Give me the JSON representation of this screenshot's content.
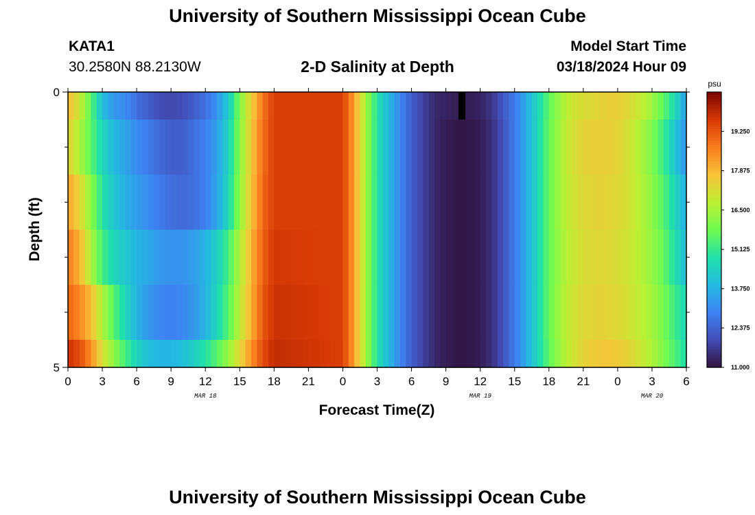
{
  "header": {
    "title": "University of Southern Mississippi Ocean Cube",
    "station_id": "KATA1",
    "station_coords": "30.2580N  88.2130W",
    "plot_title": "2-D Salinity at Depth",
    "model_start_label": "Model Start Time",
    "model_start_value": "03/18/2024 Hour 09"
  },
  "footer": {
    "title": "University of Southern Mississippi Ocean Cube"
  },
  "chart_data": {
    "type": "heatmap",
    "title": "2-D Salinity at Depth",
    "xlabel": "Forecast Time(Z)",
    "ylabel": "Depth (ft)",
    "x_tick_labels": [
      "0",
      "3",
      "6",
      "9",
      "12",
      "15",
      "18",
      "21",
      "0",
      "3",
      "6",
      "9",
      "12",
      "15",
      "18",
      "21",
      "0",
      "3",
      "6"
    ],
    "x_hours": [
      0,
      3,
      6,
      9,
      12,
      15,
      18,
      21,
      24,
      27,
      30,
      33,
      36,
      39,
      42,
      45,
      48,
      51,
      54
    ],
    "x_range_hours": [
      0,
      54
    ],
    "date_labels": [
      {
        "label": "MAR 18",
        "hour": 12
      },
      {
        "label": "MAR 19",
        "hour": 36
      },
      {
        "label": "MAR 20",
        "hour": 51
      }
    ],
    "y_tick_labels": [
      "0",
      "5"
    ],
    "y_range_ft": [
      0,
      5
    ],
    "depth_levels_ft": [
      0.25,
      1.5,
      2.5,
      3.5,
      4.5,
      5.0
    ],
    "depth_level_bounds_ft": [
      [
        0,
        0.5
      ],
      [
        0.5,
        1.5
      ],
      [
        1.5,
        2.5
      ],
      [
        2.5,
        3.5
      ],
      [
        3.5,
        4.5
      ],
      [
        4.5,
        5
      ]
    ],
    "colorbar": {
      "unit": "psu",
      "range": [
        11.0,
        20.625
      ],
      "tick_values": [
        11.0,
        12.375,
        13.75,
        15.125,
        16.5,
        17.875,
        19.25
      ],
      "tick_labels": [
        "11.000",
        "12.375",
        "13.750",
        "15.125",
        "16.500",
        "17.875",
        "19.250"
      ],
      "colormap": "turbo"
    },
    "time_keyframes_hours": [
      0,
      1,
      2,
      3,
      4,
      5,
      6,
      7,
      8,
      9,
      10,
      11,
      12,
      13,
      14,
      15,
      16,
      17,
      18,
      24,
      25,
      26,
      27,
      28,
      29,
      30,
      31,
      32,
      33,
      34,
      35,
      36,
      37,
      38,
      39,
      40,
      41,
      42,
      43,
      44,
      45,
      46,
      47,
      48,
      49,
      50,
      51,
      52,
      53,
      54
    ],
    "salinity_psu": [
      [
        17.9,
        17.0,
        15.6,
        14.0,
        13.3,
        13.1,
        12.6,
        12.3,
        12.0,
        11.9,
        12.0,
        12.3,
        12.6,
        13.2,
        14.3,
        16.0,
        17.5,
        18.8,
        19.6,
        19.6,
        18.2,
        16.5,
        14.9,
        13.9,
        13.0,
        12.3,
        11.8,
        11.4,
        11.3,
        11.2,
        11.2,
        11.3,
        11.6,
        12.2,
        12.8,
        13.6,
        14.6,
        15.6,
        16.4,
        17.0,
        17.2,
        17.3,
        17.5,
        17.5,
        17.3,
        16.9,
        16.4,
        15.6,
        14.7,
        13.3
      ],
      [
        17.5,
        16.6,
        15.6,
        14.6,
        13.9,
        13.5,
        13.1,
        12.8,
        12.5,
        12.3,
        12.3,
        12.6,
        12.9,
        13.4,
        14.5,
        16.1,
        17.6,
        18.9,
        19.6,
        19.6,
        18.2,
        16.5,
        14.9,
        13.9,
        13.0,
        12.3,
        11.8,
        11.4,
        11.2,
        11.1,
        11.1,
        11.2,
        11.5,
        12.1,
        12.8,
        13.6,
        14.6,
        15.7,
        16.5,
        17.1,
        17.4,
        17.5,
        17.5,
        17.4,
        17.1,
        16.6,
        16.0,
        15.2,
        14.2,
        13.2
      ],
      [
        18.2,
        17.4,
        16.2,
        14.9,
        14.2,
        13.7,
        13.4,
        13.1,
        12.8,
        12.6,
        12.5,
        12.6,
        12.9,
        13.5,
        14.6,
        16.2,
        17.7,
        19.0,
        19.6,
        19.6,
        18.2,
        16.5,
        14.9,
        13.9,
        13.0,
        12.3,
        11.8,
        11.4,
        11.2,
        11.1,
        11.1,
        11.2,
        11.5,
        12.1,
        12.8,
        13.6,
        14.6,
        15.7,
        16.5,
        17.0,
        17.3,
        17.4,
        17.4,
        17.3,
        17.1,
        16.7,
        16.2,
        15.5,
        14.6,
        13.6
      ],
      [
        18.7,
        18.0,
        16.6,
        15.3,
        14.6,
        14.2,
        13.8,
        13.6,
        13.3,
        13.2,
        13.2,
        13.4,
        13.8,
        14.4,
        15.3,
        16.6,
        17.9,
        19.1,
        19.7,
        19.6,
        18.2,
        16.5,
        14.9,
        13.9,
        13.0,
        12.3,
        11.8,
        11.4,
        11.2,
        11.1,
        11.1,
        11.2,
        11.5,
        12.1,
        12.8,
        13.6,
        14.6,
        15.7,
        16.4,
        16.9,
        17.2,
        17.3,
        17.3,
        17.2,
        17.0,
        16.7,
        16.3,
        15.7,
        14.8,
        14.0
      ],
      [
        19.0,
        18.6,
        17.8,
        16.6,
        15.5,
        14.6,
        13.8,
        13.3,
        13.0,
        12.9,
        13.0,
        13.3,
        13.8,
        14.6,
        15.5,
        16.8,
        18.0,
        19.2,
        19.8,
        19.6,
        18.2,
        16.5,
        14.9,
        13.9,
        13.0,
        12.3,
        11.8,
        11.4,
        11.2,
        11.1,
        11.1,
        11.2,
        11.5,
        12.1,
        12.8,
        13.6,
        14.6,
        15.7,
        16.5,
        17.0,
        17.3,
        17.4,
        17.4,
        17.3,
        17.1,
        16.8,
        16.5,
        15.9,
        15.2,
        14.6
      ],
      [
        19.8,
        19.4,
        18.5,
        17.2,
        16.2,
        15.3,
        14.5,
        14.0,
        13.8,
        13.8,
        14.0,
        14.4,
        14.9,
        15.5,
        16.3,
        17.3,
        18.4,
        19.4,
        19.9,
        19.6,
        18.2,
        16.5,
        14.9,
        13.9,
        13.0,
        12.3,
        11.8,
        11.4,
        11.2,
        11.1,
        11.1,
        11.2,
        11.5,
        12.1,
        12.8,
        13.6,
        14.6,
        15.6,
        16.4,
        17.0,
        17.4,
        17.6,
        17.7,
        17.6,
        17.4,
        17.0,
        16.6,
        16.0,
        15.4,
        14.8
      ]
    ],
    "missing_data": [
      {
        "start_hour": 34.1,
        "end_hour": 34.7,
        "depth_ft": [
          0,
          0.5
        ]
      }
    ]
  }
}
